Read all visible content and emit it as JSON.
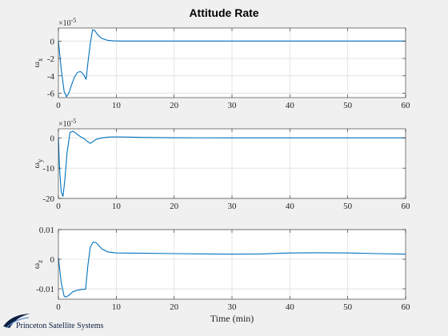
{
  "figure": {
    "title": "Attitude Rate",
    "xlabel": "Time (min)",
    "logo_text": "Princeton Satellite Systems",
    "line_color": "#0072bd",
    "grid_color": "#dfdfdf",
    "axes_bg": "#ffffff",
    "figure_bg": "#f0f0f0"
  },
  "chart_data": [
    {
      "type": "line",
      "ylabel_base": "ω",
      "ylabel_sub": "x",
      "exponent_label": "×10",
      "exponent_power": "-5",
      "xlim": [
        0,
        60
      ],
      "ylim": [
        -6.5,
        1.5
      ],
      "xticks": [
        "0",
        "10",
        "20",
        "30",
        "40",
        "50",
        "60"
      ],
      "yticks": [
        {
          "v": 0,
          "label": "0"
        },
        {
          "v": -2,
          "label": "-2"
        },
        {
          "v": -4,
          "label": "-4"
        },
        {
          "v": -6,
          "label": "-6"
        }
      ],
      "grid": true,
      "x": [
        0,
        0.5,
        1,
        1.4,
        1.8,
        2.3,
        2.8,
        3.3,
        3.8,
        4.3,
        4.8,
        5.1,
        5.5,
        5.9,
        6.3,
        6.8,
        7.5,
        8.5,
        9.5,
        11,
        15,
        20,
        30,
        40,
        50,
        60
      ],
      "y": [
        0,
        -3.3,
        -5.8,
        -6.4,
        -6.0,
        -5.0,
        -4.1,
        -3.6,
        -3.5,
        -3.8,
        -4.4,
        -2.5,
        -0.3,
        1.3,
        1.2,
        0.7,
        0.3,
        0.08,
        0.02,
        0,
        0,
        0,
        0,
        0,
        0,
        0
      ]
    },
    {
      "type": "line",
      "ylabel_base": "ω",
      "ylabel_sub": "y",
      "exponent_label": "×10",
      "exponent_power": "-5",
      "xlim": [
        0,
        60
      ],
      "ylim": [
        -20,
        3
      ],
      "xticks": [
        "0",
        "10",
        "20",
        "30",
        "40",
        "50",
        "60"
      ],
      "yticks": [
        {
          "v": 0,
          "label": "0"
        },
        {
          "v": -10,
          "label": "-10"
        },
        {
          "v": -20,
          "label": "-20"
        }
      ],
      "grid": true,
      "x": [
        0,
        0.2,
        0.5,
        0.8,
        1.1,
        1.5,
        2.0,
        2.5,
        3.0,
        3.5,
        4.0,
        4.5,
        5.0,
        5.5,
        6.0,
        6.5,
        7.5,
        9,
        11,
        15,
        20,
        30,
        40,
        50,
        60
      ],
      "y": [
        0,
        -10,
        -18,
        -19.3,
        -14,
        -5,
        1.8,
        2.2,
        1.6,
        0.8,
        0.2,
        -0.3,
        -1.2,
        -1.8,
        -1.2,
        -0.5,
        0.0,
        0.3,
        0.3,
        0.15,
        0.05,
        0,
        0,
        0,
        0
      ]
    },
    {
      "type": "line",
      "ylabel_base": "ω",
      "ylabel_sub": "z",
      "exponent_label": "",
      "exponent_power": "",
      "xlim": [
        0,
        60
      ],
      "ylim": [
        -0.0135,
        0.01
      ],
      "xticks": [
        "0",
        "10",
        "20",
        "30",
        "40",
        "50",
        "60"
      ],
      "yticks": [
        {
          "v": 0.01,
          "label": "0.01"
        },
        {
          "v": 0,
          "label": "0"
        },
        {
          "v": -0.01,
          "label": "-0.01"
        }
      ],
      "grid": true,
      "x": [
        0,
        0.5,
        1.0,
        1.3,
        1.8,
        2.5,
        3.2,
        4.0,
        4.7,
        5.1,
        5.5,
        6.0,
        6.5,
        7.0,
        7.5,
        8.5,
        10,
        15,
        20,
        25,
        30,
        35,
        40,
        45,
        50,
        55,
        60
      ],
      "y": [
        0.0005,
        -0.008,
        -0.0125,
        -0.0128,
        -0.0122,
        -0.011,
        -0.0105,
        -0.0102,
        -0.0101,
        -0.002,
        0.004,
        0.0058,
        0.0056,
        0.0046,
        0.0035,
        0.0025,
        0.0021,
        0.002,
        0.0019,
        0.0018,
        0.0017,
        0.0018,
        0.0021,
        0.0022,
        0.0021,
        0.0019,
        0.0017
      ]
    }
  ]
}
